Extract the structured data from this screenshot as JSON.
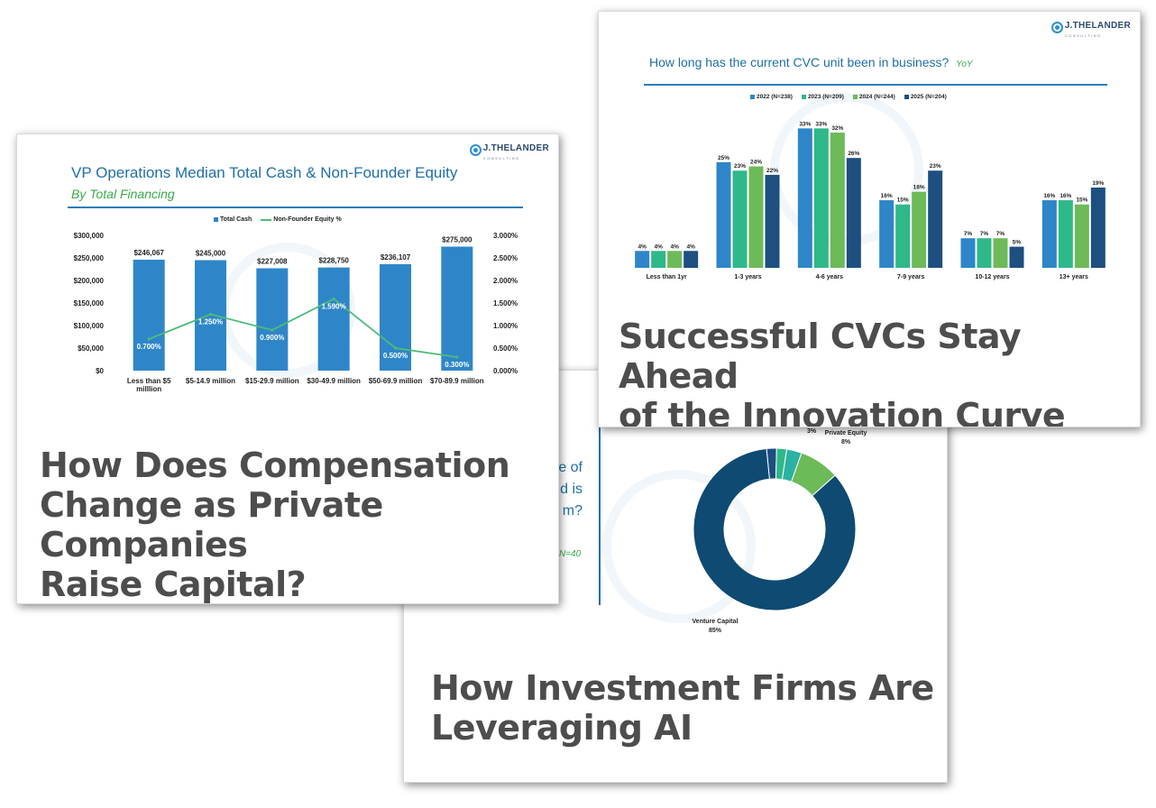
{
  "cards": {
    "ai": {
      "headline": "How Investment Firms Are\nLeveraging AI",
      "fragment_lines": [
        "e of",
        "d is",
        "m?"
      ],
      "fragment_note": "N=40"
    },
    "comp": {
      "logo": {
        "name": "J.THELANDER",
        "sub": "CONSULTING"
      },
      "headline": "How Does Compensation\nChange as Private Companies\nRaise Capital?"
    },
    "cvc": {
      "logo": {
        "name": "J.THELANDER",
        "sub": "CONSULTING"
      },
      "headline": "Successful CVCs Stay Ahead\nof the Innovation Curve"
    }
  },
  "colors": {
    "bar_blue": "#2e86c8",
    "line_green": "#4dbb7a",
    "s2022": "#2e86c8",
    "s2023": "#2fb889",
    "s2024": "#6dba58",
    "s2025": "#1d4f80",
    "donut_main": "#0e4a72"
  },
  "chart_data": [
    {
      "id": "comp",
      "type": "bar",
      "title": "VP Operations Median Total Cash & Non-Founder Equity",
      "subtitle": "By Total Financing",
      "categories": [
        "Less than $5\nmilllion",
        "$5-14.9 million",
        "$15-29.9 million",
        "$30-49.9 million",
        "$50-69.9 million",
        "$70-89.9 million"
      ],
      "series": [
        {
          "name": "Total Cash",
          "type": "bar",
          "values": [
            246067,
            245000,
            227008,
            228750,
            236107,
            275000
          ],
          "labels": [
            "$246,067",
            "$245,000",
            "$227,008",
            "$228,750",
            "$236,107",
            "$275,000"
          ]
        },
        {
          "name": "Non-Founder Equity %",
          "type": "line",
          "values": [
            0.7,
            1.25,
            0.9,
            1.59,
            0.5,
            0.3
          ],
          "labels": [
            "0.700%",
            "1.250%",
            "0.900%",
            "1.590%",
            "0.500%",
            "0.300%"
          ]
        }
      ],
      "ylim": [
        0,
        300000
      ],
      "y_ticks": [
        "$0",
        "$50,000",
        "$100,000",
        "$150,000",
        "$200,000",
        "$250,000",
        "$300,000"
      ],
      "y2lim": [
        0,
        3
      ],
      "y2_ticks": [
        "0.000%",
        "0.500%",
        "1.000%",
        "1.500%",
        "2.000%",
        "2.500%",
        "3.000%"
      ],
      "legend_placement": "top"
    },
    {
      "id": "cvc",
      "type": "bar",
      "title": "How long has the current CVC unit been in business?",
      "subtitle": "YoY",
      "categories": [
        "Less than 1yr",
        "1-3 years",
        "4-6 years",
        "7-9 years",
        "10-12 years",
        "13+ years"
      ],
      "series": [
        {
          "name": "2022 (N=238)",
          "values": [
            4,
            25,
            33,
            16,
            7,
            16
          ]
        },
        {
          "name": "2023 (N=209)",
          "values": [
            4,
            23,
            33,
            15,
            7,
            16
          ]
        },
        {
          "name": "2024 (N=244)",
          "values": [
            4,
            24,
            32,
            18,
            7,
            15
          ]
        },
        {
          "name": "2025 (N=204)",
          "values": [
            4,
            22,
            26,
            23,
            5,
            19
          ]
        }
      ],
      "unit": "%",
      "ylim": [
        0,
        35
      ],
      "legend_placement": "top"
    },
    {
      "id": "ai",
      "type": "pie",
      "slices": [
        {
          "label": "",
          "value": 2
        },
        {
          "label": "",
          "value": 2
        },
        {
          "label": "",
          "value": 3,
          "display": "3%"
        },
        {
          "label": "Private Equity",
          "value": 8,
          "display": "8%"
        },
        {
          "label": "Venture Capital",
          "value": 85,
          "display": "85%"
        }
      ]
    }
  ]
}
